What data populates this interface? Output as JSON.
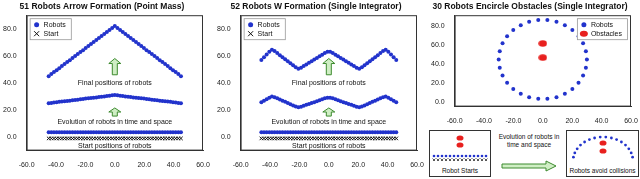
{
  "chart_data": [
    {
      "type": "scatter",
      "title": "51 Robots Arrow Formation (Point Mass)",
      "x": [
        -45,
        -43.2,
        -41.4,
        -39.6,
        -37.8,
        -36,
        -34.2,
        -32.4,
        -30.6,
        -28.8,
        -27,
        -25.2,
        -23.4,
        -21.6,
        -19.8,
        -18,
        -16.2,
        -14.4,
        -12.6,
        -10.8,
        -9,
        -7.2,
        -5.4,
        -3.6,
        -1.8,
        0,
        1.8,
        3.6,
        5.4,
        7.2,
        9,
        10.8,
        12.6,
        14.4,
        16.2,
        18,
        19.8,
        21.6,
        23.4,
        25.2,
        27,
        28.8,
        30.6,
        32.4,
        34.2,
        36,
        37.8,
        39.6,
        41.4,
        43.2,
        45
      ],
      "series": [
        {
          "name": "Robots",
          "color": "#2233cc",
          "marker": "circle",
          "values": [
            [
              3.5,
              3.5,
              3.5,
              3.5,
              3.5,
              3.5,
              3.5,
              3.5,
              3.5,
              3.5,
              3.5,
              3.5,
              3.5,
              3.5,
              3.5,
              3.5,
              3.5,
              3.5,
              3.5,
              3.5,
              3.5,
              3.5,
              3.5,
              3.5,
              3.5,
              3.5,
              3.5,
              3.5,
              3.5,
              3.5,
              3.5,
              3.5,
              3.5,
              3.5,
              3.5,
              3.5,
              3.5,
              3.5,
              3.5,
              3.5,
              3.5,
              3.5,
              3.5,
              3.5,
              3.5,
              3.5,
              3.5,
              3.5,
              3.5,
              3.5,
              3.5
            ],
            [
              25,
              25.2,
              25.5,
              25.7,
              26,
              26.2,
              26.4,
              26.7,
              26.9,
              27.2,
              27.4,
              27.6,
              27.9,
              28.1,
              28.4,
              28.6,
              28.8,
              29.1,
              29.3,
              29.6,
              29.8,
              30,
              30.3,
              30.5,
              30.8,
              31,
              30.8,
              30.5,
              30.3,
              30,
              29.8,
              29.6,
              29.3,
              29.1,
              28.8,
              28.6,
              28.4,
              28.1,
              27.9,
              27.6,
              27.4,
              27.2,
              26.9,
              26.7,
              26.4,
              26.2,
              26,
              25.7,
              25.5,
              25.2,
              25
            ],
            [
              45,
              46.5,
              48,
              49.4,
              50.9,
              52.4,
              53.9,
              55.4,
              56.8,
              58.3,
              59.8,
              61.3,
              62.8,
              64.2,
              65.7,
              67.2,
              68.7,
              70.2,
              71.6,
              73.1,
              74.6,
              76.1,
              77.6,
              79,
              80.5,
              82,
              80.5,
              79,
              77.6,
              76.1,
              74.6,
              73.1,
              71.6,
              70.2,
              68.7,
              67.2,
              65.7,
              64.2,
              62.8,
              61.3,
              59.8,
              58.3,
              56.8,
              55.4,
              53.9,
              52.4,
              50.9,
              49.4,
              48,
              46.5,
              45
            ]
          ]
        },
        {
          "name": "Start",
          "color": "#111111",
          "marker": "x",
          "values": [
            -1,
            -1,
            -1,
            -1,
            -1,
            -1,
            -1,
            -1,
            -1,
            -1,
            -1,
            -1,
            -1,
            -1,
            -1,
            -1,
            -1,
            -1,
            -1,
            -1,
            -1,
            -1,
            -1,
            -1,
            -1,
            -1,
            -1,
            -1,
            -1,
            -1,
            -1,
            -1,
            -1,
            -1,
            -1,
            -1,
            -1,
            -1,
            -1,
            -1,
            -1,
            -1,
            -1,
            -1,
            -1,
            -1,
            -1,
            -1,
            -1,
            -1,
            -1
          ]
        }
      ],
      "annotations": [
        "Final positions of robots",
        "Evolution of robots in time and space",
        "Start positions of robots"
      ],
      "xlim": [
        -60,
        60
      ],
      "xticks": [
        {
          "value": -60,
          "label": "-60.0"
        },
        {
          "value": -40,
          "label": "-40.0"
        },
        {
          "value": -20,
          "label": "-20.0"
        },
        {
          "value": 0,
          "label": "0.0"
        },
        {
          "value": 20,
          "label": "20.0"
        },
        {
          "value": 40,
          "label": "40.0"
        },
        {
          "value": 60,
          "label": "60.0"
        }
      ],
      "ylim": [
        -10,
        90
      ],
      "yticks": [
        {
          "value": 0,
          "label": "0.0"
        },
        {
          "value": 20,
          "label": "20.0"
        },
        {
          "value": 40,
          "label": "40.0"
        },
        {
          "value": 60,
          "label": "60.0"
        },
        {
          "value": 80,
          "label": "80.0"
        }
      ],
      "grid": false,
      "legend": "upper left"
    },
    {
      "type": "scatter",
      "title": "52 Robots W Formation (Single Integrator)",
      "x": [
        -45.9,
        -44.1,
        -42.3,
        -40.5,
        -38.7,
        -36.9,
        -35.1,
        -33.3,
        -31.5,
        -29.7,
        -27.9,
        -26.1,
        -24.3,
        -22.5,
        -20.7,
        -18.9,
        -17.1,
        -15.3,
        -13.5,
        -11.7,
        -9.9,
        -8.1,
        -6.3,
        -4.5,
        -2.7,
        -0.9,
        0.9,
        2.7,
        4.5,
        6.3,
        8.1,
        9.9,
        11.7,
        13.5,
        15.3,
        17.1,
        18.9,
        20.7,
        22.5,
        24.3,
        26.1,
        27.9,
        29.7,
        31.5,
        33.3,
        35.1,
        36.9,
        38.7,
        40.5,
        42.3,
        44.1,
        45.9
      ],
      "series": [
        {
          "name": "Robots",
          "color": "#2233cc",
          "marker": "circle",
          "values": [
            [
              3.5,
              3.5,
              3.5,
              3.5,
              3.5,
              3.5,
              3.5,
              3.5,
              3.5,
              3.5,
              3.5,
              3.5,
              3.5,
              3.5,
              3.5,
              3.5,
              3.5,
              3.5,
              3.5,
              3.5,
              3.5,
              3.5,
              3.5,
              3.5,
              3.5,
              3.5,
              3.5,
              3.5,
              3.5,
              3.5,
              3.5,
              3.5,
              3.5,
              3.5,
              3.5,
              3.5,
              3.5,
              3.5,
              3.5,
              3.5,
              3.5,
              3.5,
              3.5,
              3.5,
              3.5,
              3.5,
              3.5,
              3.5,
              3.5,
              3.5,
              3.5,
              3.5
            ],
            [
              25.7,
              26.8,
              28,
              29.1,
              30,
              29.4,
              28.6,
              27.7,
              26.8,
              26,
              25.1,
              24.3,
              23.4,
              22.6,
              22,
              22.4,
              23.1,
              23.8,
              24.5,
              25.1,
              25.8,
              26.5,
              27.2,
              27.9,
              28.6,
              29.1,
              29.1,
              28.6,
              27.9,
              27.2,
              26.5,
              25.8,
              25.1,
              24.5,
              23.8,
              23.1,
              22.4,
              22,
              22.6,
              23.4,
              24.3,
              25.1,
              26,
              26.8,
              27.7,
              28.6,
              29.4,
              30,
              29.1,
              28,
              26.8,
              25.7
            ],
            [
              57,
              59,
              61,
              63,
              64.5,
              63.5,
              62,
              60.5,
              59,
              57.5,
              56,
              54.5,
              53,
              51.5,
              50.5,
              51.2,
              52.4,
              53.6,
              54.8,
              56,
              57.2,
              58.4,
              59.6,
              60.8,
              62,
              63,
              63,
              62,
              60.8,
              59.6,
              58.4,
              57.2,
              56,
              54.8,
              53.6,
              52.4,
              51.2,
              50.5,
              51.5,
              53,
              54.5,
              56,
              57.5,
              59,
              60.5,
              62,
              63.5,
              64.5,
              63,
              61,
              59,
              57
            ]
          ]
        },
        {
          "name": "Start",
          "color": "#111111",
          "marker": "x",
          "values": [
            -1,
            -1,
            -1,
            -1,
            -1,
            -1,
            -1,
            -1,
            -1,
            -1,
            -1,
            -1,
            -1,
            -1,
            -1,
            -1,
            -1,
            -1,
            -1,
            -1,
            -1,
            -1,
            -1,
            -1,
            -1,
            -1,
            -1,
            -1,
            -1,
            -1,
            -1,
            -1,
            -1,
            -1,
            -1,
            -1,
            -1,
            -1,
            -1,
            -1,
            -1,
            -1,
            -1,
            -1,
            -1,
            -1,
            -1,
            -1,
            -1,
            -1,
            -1,
            -1
          ]
        }
      ],
      "annotations": [
        "Final positions of robots",
        "Evolution of robots in time and space",
        "Start positions of robots"
      ],
      "xlim": [
        -60,
        60
      ],
      "xticks": [
        {
          "value": -60,
          "label": "-60.0"
        },
        {
          "value": -40,
          "label": "-40.0"
        },
        {
          "value": -20,
          "label": "-20.0"
        },
        {
          "value": 0,
          "label": "0.0"
        },
        {
          "value": 20,
          "label": "20.0"
        },
        {
          "value": 40,
          "label": "40.0"
        },
        {
          "value": 60,
          "label": "60.0"
        }
      ],
      "ylim": [
        -10,
        90
      ],
      "yticks": [
        {
          "value": 0,
          "label": "0.0"
        },
        {
          "value": 20,
          "label": "20.0"
        },
        {
          "value": 40,
          "label": "40.0"
        },
        {
          "value": 60,
          "label": "60.0"
        },
        {
          "value": 80,
          "label": "80.0"
        }
      ],
      "grid": false,
      "legend": "upper left"
    },
    {
      "type": "scatter",
      "title": "30 Robots Encircle Obstacles (Single Integrator)",
      "series": [
        {
          "name": "Robots",
          "color": "#2233cc",
          "marker": "circle",
          "x": [
            30,
            29.3,
            27.4,
            24.3,
            20.1,
            15,
            9.3,
            3.1,
            -3.1,
            -9.3,
            -15,
            -20.1,
            -24.3,
            -27.4,
            -29.3,
            -30,
            -29.3,
            -27.4,
            -24.3,
            -20.1,
            -15,
            -9.3,
            -3.1,
            3.1,
            9.3,
            15,
            20.1,
            24.3,
            27.4,
            29.3
          ],
          "values": [
            45,
            53.7,
            62.1,
            69.7,
            76.2,
            81.4,
            85,
            86.8,
            86.8,
            85,
            81.4,
            76.2,
            69.7,
            62.1,
            53.7,
            45,
            36.3,
            27.9,
            20.3,
            13.8,
            8.6,
            5,
            3.2,
            3.2,
            5,
            8.6,
            13.8,
            20.3,
            27.9,
            36.3
          ]
        },
        {
          "name": "Obstacles",
          "color": "#e8201e",
          "marker": "ellipse",
          "x": [
            0,
            0
          ],
          "values": [
            62,
            47
          ]
        }
      ],
      "xlim": [
        -60,
        60
      ],
      "xticks": [
        {
          "value": -60,
          "label": "-60.0"
        },
        {
          "value": -40,
          "label": "-40.0"
        },
        {
          "value": -20,
          "label": "-20.0"
        },
        {
          "value": 0,
          "label": "0.0"
        },
        {
          "value": 20,
          "label": "20.0"
        },
        {
          "value": 40,
          "label": "40.0"
        },
        {
          "value": 60,
          "label": "60.0"
        }
      ],
      "ylim": [
        -5,
        92
      ],
      "yticks": [
        {
          "value": 0,
          "label": "0.0"
        },
        {
          "value": 20,
          "label": "20.0"
        },
        {
          "value": 40,
          "label": "40.0"
        },
        {
          "value": 60,
          "label": "60.0"
        },
        {
          "value": 80,
          "label": "80.0"
        }
      ],
      "grid": false,
      "legend": "upper right"
    }
  ],
  "inset_texts": [
    "Robot Starts",
    "Evolution of robots in time and space",
    "Robots avoid collisions"
  ]
}
